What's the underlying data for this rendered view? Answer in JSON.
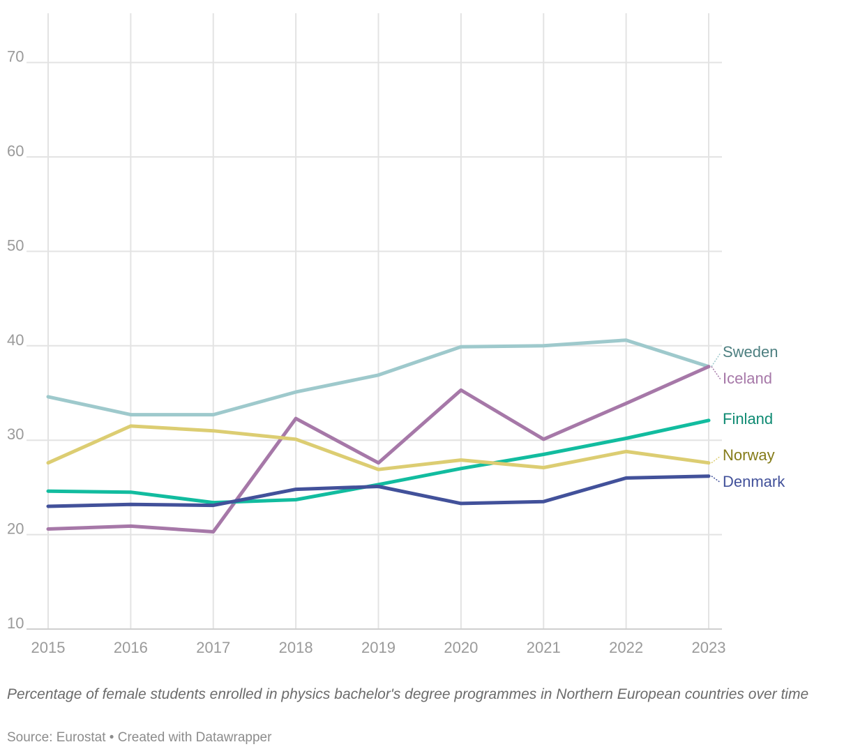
{
  "chart_data": {
    "type": "line",
    "title": "",
    "xlabel": "",
    "ylabel": "",
    "x": [
      2015,
      2016,
      2017,
      2018,
      2019,
      2020,
      2021,
      2022,
      2023
    ],
    "ylim": [
      10,
      75
    ],
    "yticks": [
      10,
      20,
      30,
      40,
      50,
      60,
      70
    ],
    "grid": true,
    "legend": "direct labels at line ends (right)",
    "series": [
      {
        "name": "Sweden",
        "color": "#9ec9cc",
        "label_color": "#4d7f80",
        "values": [
          34.6,
          32.7,
          32.7,
          35.1,
          36.9,
          39.9,
          40.0,
          40.6,
          37.8
        ]
      },
      {
        "name": "Iceland",
        "color": "#a678a8",
        "label_color": "#a678a8",
        "values": [
          20.6,
          20.9,
          20.3,
          32.3,
          27.6,
          35.3,
          30.1,
          33.9,
          37.8
        ]
      },
      {
        "name": "Finland",
        "color": "#12bc9f",
        "label_color": "#0e8a72",
        "values": [
          24.6,
          24.5,
          23.4,
          23.7,
          25.3,
          27.0,
          28.5,
          30.2,
          32.1
        ]
      },
      {
        "name": "Norway",
        "color": "#dccd72",
        "label_color": "#857c1a",
        "values": [
          27.6,
          31.5,
          31.0,
          30.1,
          26.9,
          27.9,
          27.1,
          28.8,
          27.6
        ]
      },
      {
        "name": "Denmark",
        "color": "#42519a",
        "label_color": "#42519a",
        "values": [
          23.0,
          23.2,
          23.1,
          24.8,
          25.1,
          23.3,
          23.5,
          26.0,
          26.2
        ]
      }
    ]
  },
  "caption": "Percentage of female students enrolled in physics bachelor's degree programmes in Northern European countries over time",
  "source": "Source: Eurostat • Created with Datawrapper"
}
